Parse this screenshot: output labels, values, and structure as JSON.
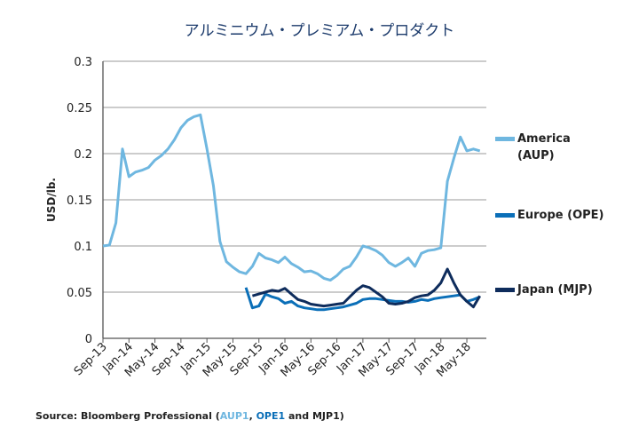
{
  "chart_data": {
    "type": "line",
    "title": "アルミニウム・プレミアム・プロダクト",
    "xlabel": "",
    "ylabel": "USD/lb.",
    "ylim": [
      0,
      0.3
    ],
    "y_ticks": [
      "0",
      "0.05",
      "0.1",
      "0.15",
      "0.2",
      "0.25",
      "0.3"
    ],
    "x_ticks": [
      "Sep-13",
      "Jan-14",
      "May-14",
      "Sep-14",
      "Jan-15",
      "May-15",
      "Sep-15",
      "Jan-16",
      "May-16",
      "Sep-16",
      "Jan-17",
      "May-17",
      "Sep-17",
      "Jan-18",
      "May-18"
    ],
    "grid": "horizontal",
    "legend_position": "right",
    "series": [
      {
        "name": "America (AUP)",
        "color": "#6fb7e0",
        "x": [
          "2013-09",
          "2013-10",
          "2013-11",
          "2013-12",
          "2014-01",
          "2014-02",
          "2014-03",
          "2014-04",
          "2014-05",
          "2014-06",
          "2014-07",
          "2014-08",
          "2014-09",
          "2014-10",
          "2014-11",
          "2014-12",
          "2015-01",
          "2015-02",
          "2015-03",
          "2015-04",
          "2015-05",
          "2015-06",
          "2015-07",
          "2015-08",
          "2015-09",
          "2015-10",
          "2015-11",
          "2015-12",
          "2016-01",
          "2016-02",
          "2016-03",
          "2016-04",
          "2016-05",
          "2016-06",
          "2016-07",
          "2016-08",
          "2016-09",
          "2016-10",
          "2016-11",
          "2016-12",
          "2017-01",
          "2017-02",
          "2017-03",
          "2017-04",
          "2017-05",
          "2017-06",
          "2017-07",
          "2017-08",
          "2017-09",
          "2017-10",
          "2017-11",
          "2017-12",
          "2018-01",
          "2018-02",
          "2018-03",
          "2018-04",
          "2018-05",
          "2018-06",
          "2018-07"
        ],
        "values": [
          0.1,
          0.101,
          0.125,
          0.205,
          0.175,
          0.18,
          0.182,
          0.185,
          0.193,
          0.198,
          0.205,
          0.215,
          0.228,
          0.236,
          0.24,
          0.242,
          0.205,
          0.165,
          0.105,
          0.083,
          0.077,
          0.072,
          0.07,
          0.078,
          0.092,
          0.087,
          0.085,
          0.082,
          0.088,
          0.081,
          0.077,
          0.072,
          0.073,
          0.07,
          0.065,
          0.063,
          0.068,
          0.075,
          0.078,
          0.088,
          0.1,
          0.098,
          0.095,
          0.09,
          0.082,
          0.078,
          0.082,
          0.087,
          0.078,
          0.092,
          0.095,
          0.096,
          0.098,
          0.17,
          0.195,
          0.218,
          0.203,
          0.205,
          0.203
        ]
      },
      {
        "name": "Europe (OPE)",
        "color": "#0b6fb8",
        "x": [
          "2015-07",
          "2015-08",
          "2015-09",
          "2015-10",
          "2015-11",
          "2015-12",
          "2016-01",
          "2016-02",
          "2016-03",
          "2016-04",
          "2016-05",
          "2016-06",
          "2016-07",
          "2016-08",
          "2016-09",
          "2016-10",
          "2016-11",
          "2016-12",
          "2017-01",
          "2017-02",
          "2017-03",
          "2017-04",
          "2017-05",
          "2017-06",
          "2017-07",
          "2017-08",
          "2017-09",
          "2017-10",
          "2017-11",
          "2017-12",
          "2018-01",
          "2018-02",
          "2018-03",
          "2018-04",
          "2018-05",
          "2018-06",
          "2018-07"
        ],
        "values": [
          0.055,
          0.033,
          0.035,
          0.048,
          0.045,
          0.043,
          0.038,
          0.04,
          0.035,
          0.033,
          0.032,
          0.031,
          0.031,
          0.032,
          0.033,
          0.034,
          0.036,
          0.038,
          0.042,
          0.043,
          0.043,
          0.042,
          0.041,
          0.04,
          0.04,
          0.039,
          0.04,
          0.042,
          0.041,
          0.043,
          0.044,
          0.045,
          0.046,
          0.047,
          0.04,
          0.042,
          0.045
        ]
      },
      {
        "name": "Japan (MJP)",
        "color": "#0e2c5c",
        "x": [
          "2015-08",
          "2015-09",
          "2015-10",
          "2015-11",
          "2015-12",
          "2016-01",
          "2016-02",
          "2016-03",
          "2016-04",
          "2016-05",
          "2016-06",
          "2016-07",
          "2016-08",
          "2016-09",
          "2016-10",
          "2016-11",
          "2016-12",
          "2017-01",
          "2017-02",
          "2017-03",
          "2017-04",
          "2017-05",
          "2017-06",
          "2017-07",
          "2017-08",
          "2017-09",
          "2017-10",
          "2017-11",
          "2017-12",
          "2018-01",
          "2018-02",
          "2018-03",
          "2018-04",
          "2018-05",
          "2018-06",
          "2018-07"
        ],
        "values": [
          0.046,
          0.048,
          0.05,
          0.052,
          0.051,
          0.054,
          0.048,
          0.042,
          0.04,
          0.037,
          0.036,
          0.035,
          0.036,
          0.037,
          0.038,
          0.045,
          0.052,
          0.057,
          0.055,
          0.05,
          0.045,
          0.038,
          0.037,
          0.038,
          0.04,
          0.044,
          0.046,
          0.047,
          0.052,
          0.06,
          0.075,
          0.06,
          0.047,
          0.04,
          0.034,
          0.046
        ]
      }
    ]
  },
  "source": {
    "prefix": "Source: Bloomberg Professional (",
    "code1": "AUP1",
    "sep1": ", ",
    "code2": "OPE1",
    "sep2": " and ",
    "code3": "MJP1",
    "suffix": ")"
  }
}
